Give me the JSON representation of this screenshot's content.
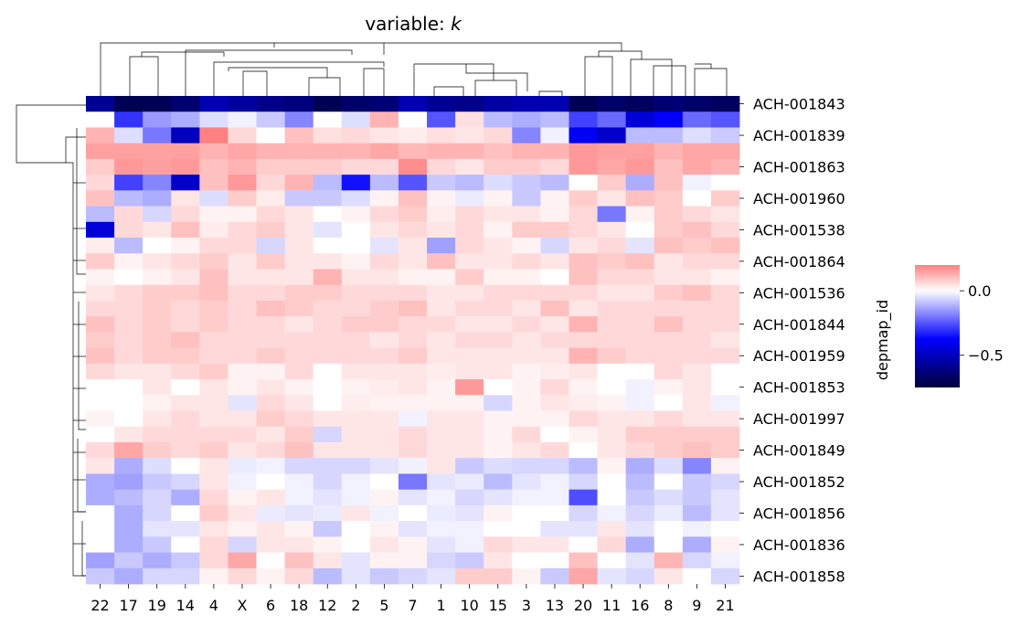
{
  "chart_data": {
    "type": "heatmap",
    "title_prefix": "variable: ",
    "title_var": "k",
    "ylabel": "depmap_id",
    "x_labels": [
      "22",
      "17",
      "19",
      "14",
      "4",
      "X",
      "6",
      "18",
      "12",
      "2",
      "5",
      "7",
      "1",
      "10",
      "15",
      "3",
      "13",
      "20",
      "11",
      "16",
      "8",
      "9",
      "21"
    ],
    "row_labels_shown": [
      "ACH-001843",
      "ACH-001839",
      "ACH-001863",
      "ACH-001960",
      "ACH-001538",
      "ACH-001864",
      "ACH-001536",
      "ACH-001844",
      "ACH-001959",
      "ACH-001853",
      "ACH-001997",
      "ACH-001849",
      "ACH-001852",
      "ACH-001856",
      "ACH-001836",
      "ACH-001858"
    ],
    "n_rows": 31,
    "colormap": {
      "low": "#00003a",
      "mid_low": "#0000ff",
      "mid": "#ffffff",
      "high": "#ff8080",
      "vmin": -0.75,
      "vmax": 0.2
    },
    "colorbar_ticks": [
      {
        "value": 0.0,
        "label": "0.0"
      },
      {
        "value": -0.5,
        "label": "−0.5"
      }
    ],
    "values": [
      [
        -0.58,
        -0.7,
        -0.7,
        -0.65,
        -0.52,
        -0.56,
        -0.6,
        -0.62,
        -0.7,
        -0.66,
        -0.64,
        -0.52,
        -0.58,
        -0.6,
        -0.55,
        -0.52,
        -0.52,
        -0.7,
        -0.66,
        -0.68,
        -0.64,
        -0.66,
        -0.68
      ],
      [
        0.0,
        -0.3,
        -0.15,
        -0.12,
        -0.05,
        -0.02,
        -0.08,
        -0.18,
        0.0,
        -0.05,
        0.12,
        0.0,
        -0.25,
        0.05,
        -0.1,
        -0.12,
        -0.1,
        -0.28,
        -0.22,
        -0.45,
        -0.38,
        -0.22,
        -0.25
      ],
      [
        0.12,
        -0.05,
        -0.2,
        -0.5,
        0.2,
        0.06,
        0.0,
        0.1,
        0.05,
        0.06,
        0.04,
        0.03,
        0.05,
        0.04,
        0.06,
        -0.18,
        -0.02,
        -0.4,
        -0.48,
        -0.1,
        -0.1,
        -0.05,
        -0.08
      ],
      [
        0.15,
        0.15,
        0.15,
        0.15,
        0.12,
        0.14,
        0.12,
        0.12,
        0.12,
        0.12,
        0.14,
        0.11,
        0.12,
        0.12,
        0.1,
        0.12,
        0.12,
        0.16,
        0.15,
        0.15,
        0.12,
        0.14,
        0.14
      ],
      [
        0.08,
        0.16,
        0.15,
        0.16,
        0.1,
        0.12,
        0.08,
        0.08,
        0.08,
        0.06,
        0.06,
        0.18,
        0.06,
        0.04,
        0.08,
        0.08,
        0.06,
        0.16,
        0.14,
        0.16,
        0.1,
        0.14,
        0.12
      ],
      [
        0.06,
        -0.28,
        -0.18,
        -0.48,
        0.1,
        0.16,
        0.06,
        0.12,
        -0.1,
        -0.35,
        -0.1,
        -0.25,
        -0.08,
        -0.1,
        -0.05,
        -0.08,
        -0.1,
        0.0,
        0.08,
        -0.12,
        0.1,
        -0.02,
        0.0
      ],
      [
        0.1,
        -0.1,
        -0.12,
        0.04,
        -0.05,
        0.08,
        0.03,
        -0.08,
        -0.08,
        -0.05,
        0.02,
        0.1,
        0.02,
        -0.03,
        0.02,
        -0.08,
        0.02,
        0.08,
        0.04,
        0.1,
        0.08,
        0.0,
        0.08
      ],
      [
        -0.1,
        0.06,
        -0.06,
        0.06,
        0.02,
        0.02,
        0.06,
        0.04,
        0.0,
        0.02,
        0.06,
        0.08,
        0.03,
        0.06,
        0.04,
        0.04,
        0.02,
        0.06,
        -0.2,
        0.02,
        0.08,
        0.06,
        0.04
      ],
      [
        -0.45,
        0.06,
        0.04,
        0.1,
        0.03,
        0.06,
        0.08,
        0.04,
        -0.04,
        0.0,
        0.04,
        0.06,
        0.04,
        0.06,
        0.02,
        0.08,
        0.08,
        0.06,
        0.04,
        0.0,
        0.08,
        0.1,
        0.06
      ],
      [
        0.03,
        -0.1,
        0.0,
        0.02,
        0.06,
        0.06,
        -0.06,
        0.04,
        0.0,
        0.0,
        -0.04,
        0.04,
        -0.14,
        0.06,
        0.04,
        0.02,
        -0.06,
        0.04,
        0.06,
        -0.04,
        0.1,
        0.08,
        0.1
      ],
      [
        0.08,
        0.02,
        0.04,
        0.06,
        0.08,
        0.04,
        0.08,
        0.04,
        0.04,
        0.02,
        0.06,
        0.04,
        0.1,
        0.04,
        0.04,
        0.06,
        0.04,
        0.1,
        0.08,
        0.1,
        0.04,
        0.06,
        0.06
      ],
      [
        0.02,
        0.0,
        0.02,
        0.04,
        0.1,
        0.04,
        0.04,
        0.04,
        0.12,
        0.04,
        0.04,
        0.02,
        0.02,
        0.08,
        0.02,
        0.02,
        0.0,
        0.1,
        0.06,
        0.06,
        0.04,
        0.04,
        0.02
      ],
      [
        0.04,
        0.06,
        0.08,
        0.08,
        0.1,
        0.06,
        0.06,
        0.08,
        0.08,
        0.06,
        0.06,
        0.06,
        0.04,
        0.04,
        0.06,
        0.06,
        0.06,
        0.06,
        0.04,
        0.04,
        0.08,
        0.1,
        0.06
      ],
      [
        0.06,
        0.06,
        0.08,
        0.06,
        0.08,
        0.06,
        0.1,
        0.08,
        0.06,
        0.06,
        0.08,
        0.1,
        0.04,
        0.06,
        0.06,
        0.04,
        0.1,
        0.04,
        0.06,
        0.06,
        0.06,
        0.06,
        0.06
      ],
      [
        0.1,
        0.06,
        0.08,
        0.06,
        0.08,
        0.06,
        0.06,
        0.04,
        0.06,
        0.08,
        0.08,
        0.06,
        0.06,
        0.04,
        0.04,
        0.06,
        0.04,
        0.12,
        0.06,
        0.06,
        0.1,
        0.06,
        0.06
      ],
      [
        0.08,
        0.06,
        0.08,
        0.1,
        0.06,
        0.06,
        0.06,
        0.06,
        0.06,
        0.06,
        0.04,
        0.06,
        0.04,
        0.06,
        0.06,
        0.04,
        0.06,
        0.06,
        0.06,
        0.06,
        0.06,
        0.06,
        0.04
      ],
      [
        0.1,
        0.06,
        0.08,
        0.08,
        0.06,
        0.06,
        0.08,
        0.06,
        0.06,
        0.06,
        0.06,
        0.08,
        0.04,
        0.04,
        0.04,
        0.04,
        0.04,
        0.12,
        0.08,
        0.06,
        0.06,
        0.06,
        0.06
      ],
      [
        0.06,
        0.04,
        0.04,
        0.06,
        0.08,
        0.02,
        0.02,
        0.06,
        0.0,
        0.04,
        0.04,
        0.04,
        0.03,
        0.04,
        0.04,
        0.02,
        0.03,
        0.04,
        0.0,
        0.0,
        0.06,
        0.04,
        0.0
      ],
      [
        0.0,
        0.0,
        0.04,
        0.0,
        0.04,
        0.02,
        0.04,
        0.02,
        0.0,
        0.02,
        0.03,
        0.04,
        0.02,
        0.16,
        0.0,
        0.02,
        0.06,
        0.02,
        0.0,
        -0.02,
        0.02,
        0.04,
        0.0
      ],
      [
        0.0,
        0.0,
        0.02,
        0.04,
        0.04,
        -0.04,
        0.06,
        0.04,
        0.0,
        0.03,
        0.02,
        0.02,
        0.02,
        0.02,
        -0.06,
        0.02,
        0.04,
        0.03,
        0.02,
        -0.02,
        0.0,
        0.04,
        -0.02
      ],
      [
        0.02,
        0.0,
        0.04,
        0.06,
        0.04,
        0.04,
        0.08,
        0.06,
        0.04,
        0.04,
        0.04,
        -0.02,
        0.04,
        0.04,
        0.02,
        0.02,
        0.02,
        0.06,
        0.04,
        0.04,
        0.06,
        0.04,
        0.04
      ],
      [
        0.0,
        0.04,
        0.06,
        0.06,
        0.06,
        0.06,
        0.04,
        0.08,
        -0.06,
        0.04,
        0.04,
        0.06,
        0.04,
        0.04,
        0.02,
        0.06,
        0.0,
        0.02,
        0.04,
        0.08,
        0.08,
        0.08,
        0.08
      ],
      [
        0.06,
        0.14,
        0.08,
        0.06,
        0.08,
        0.04,
        0.06,
        0.1,
        0.04,
        0.04,
        0.04,
        0.06,
        0.04,
        0.04,
        0.02,
        0.04,
        0.06,
        0.0,
        0.04,
        0.06,
        0.08,
        0.1,
        0.08
      ],
      [
        0.04,
        -0.12,
        -0.05,
        0.0,
        0.04,
        -0.03,
        -0.02,
        -0.06,
        -0.06,
        -0.06,
        -0.04,
        -0.02,
        0.04,
        -0.08,
        -0.05,
        -0.06,
        -0.06,
        -0.1,
        0.02,
        -0.12,
        -0.05,
        -0.18,
        0.02
      ],
      [
        -0.12,
        -0.14,
        -0.08,
        -0.06,
        0.04,
        -0.02,
        0.0,
        -0.02,
        -0.06,
        -0.02,
        0.0,
        -0.2,
        -0.04,
        -0.03,
        -0.1,
        -0.04,
        -0.02,
        -0.06,
        0.0,
        -0.1,
        0.0,
        -0.08,
        -0.06
      ],
      [
        -0.12,
        -0.1,
        -0.06,
        -0.12,
        0.06,
        0.02,
        0.04,
        -0.02,
        -0.04,
        -0.02,
        0.02,
        -0.04,
        -0.02,
        -0.06,
        -0.04,
        -0.02,
        -0.02,
        -0.26,
        0.0,
        -0.08,
        -0.05,
        -0.08,
        -0.04
      ],
      [
        0.0,
        -0.12,
        -0.06,
        0.0,
        0.08,
        0.04,
        -0.03,
        -0.04,
        -0.03,
        0.04,
        -0.02,
        0.0,
        -0.03,
        -0.04,
        0.02,
        0.0,
        0.0,
        -0.06,
        -0.02,
        -0.06,
        -0.03,
        -0.1,
        -0.04
      ],
      [
        0.0,
        -0.12,
        -0.04,
        -0.04,
        0.04,
        0.02,
        0.04,
        0.02,
        -0.08,
        0.0,
        0.02,
        -0.04,
        -0.02,
        -0.02,
        0.0,
        0.0,
        -0.04,
        -0.04,
        0.04,
        -0.04,
        0.0,
        -0.02,
        0.0
      ],
      [
        0.0,
        -0.12,
        -0.08,
        0.0,
        0.06,
        -0.06,
        0.04,
        0.04,
        0.02,
        0.0,
        0.04,
        0.02,
        -0.04,
        -0.02,
        0.06,
        0.04,
        0.04,
        0.0,
        0.06,
        -0.12,
        0.0,
        -0.12,
        0.02
      ],
      [
        -0.14,
        -0.08,
        -0.12,
        -0.08,
        0.06,
        0.14,
        0.0,
        0.1,
        0.04,
        -0.04,
        0.02,
        0.02,
        -0.06,
        -0.08,
        0.04,
        0.0,
        0.0,
        0.1,
        0.0,
        -0.04,
        0.12,
        -0.06,
        -0.02
      ],
      [
        -0.08,
        -0.12,
        -0.06,
        -0.06,
        0.02,
        0.06,
        0.02,
        0.06,
        -0.1,
        -0.04,
        -0.08,
        -0.06,
        -0.04,
        0.08,
        0.08,
        0.02,
        -0.08,
        0.14,
        -0.04,
        -0.06,
        0.04,
        0.0,
        -0.06
      ]
    ]
  }
}
